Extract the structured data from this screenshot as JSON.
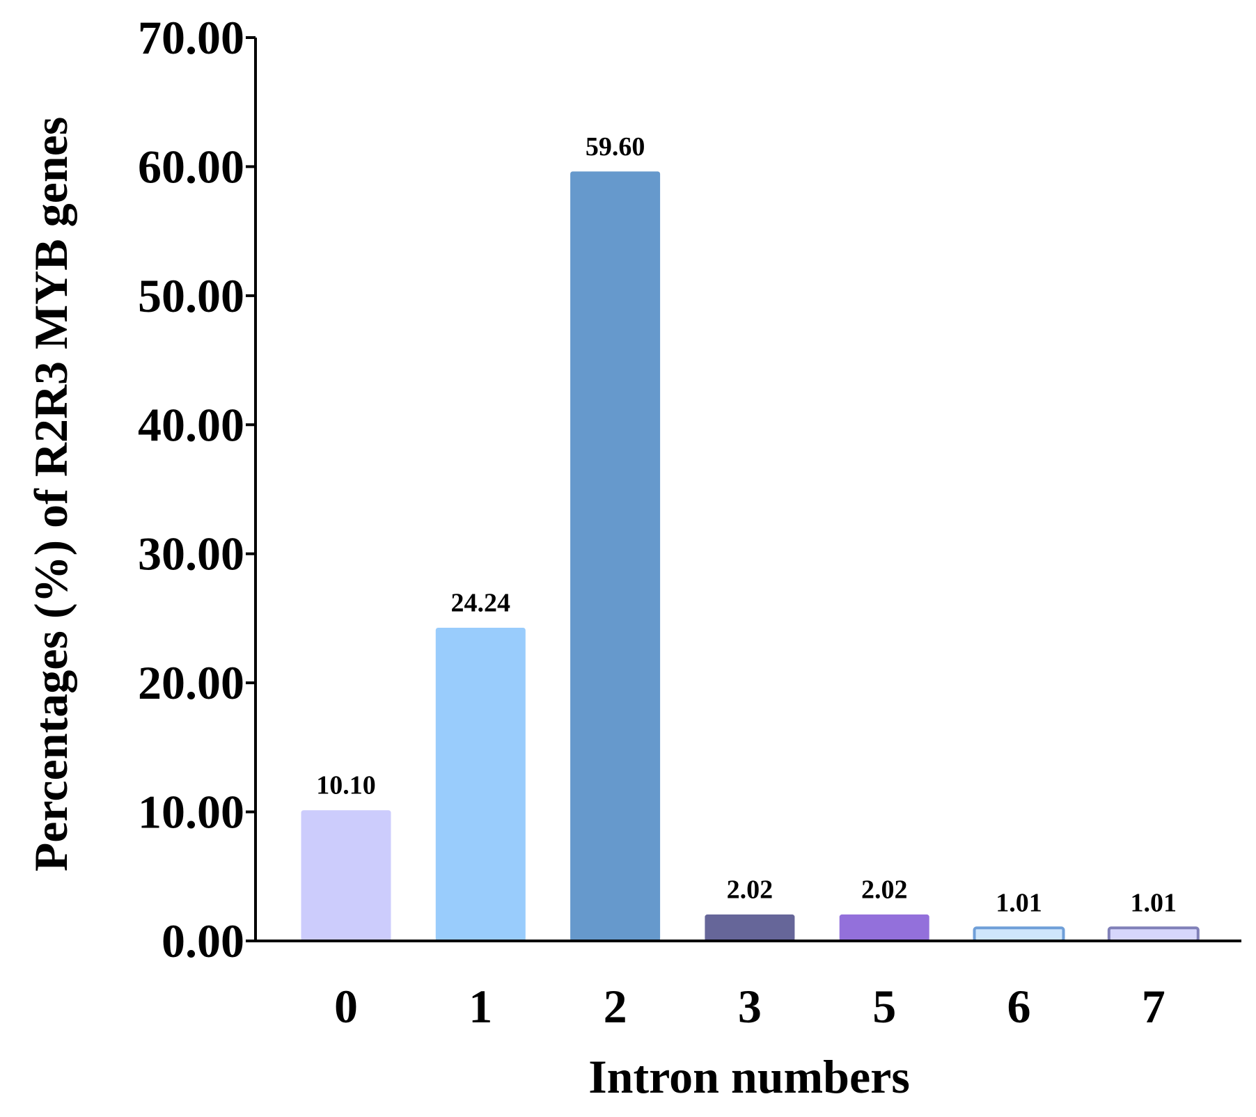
{
  "chart_data": {
    "type": "bar",
    "xlabel": "Intron numbers",
    "ylabel": "Percentages (%) of R2R3 MYB genes",
    "ylim": [
      0,
      70
    ],
    "yticks": [
      "0.00",
      "10.00",
      "20.00",
      "30.00",
      "40.00",
      "50.00",
      "60.00",
      "70.00"
    ],
    "grid": false,
    "categories": [
      "0",
      "1",
      "2",
      "3",
      "5",
      "6",
      "7"
    ],
    "values": [
      10.1,
      24.24,
      59.6,
      2.02,
      2.02,
      1.01,
      1.01
    ],
    "value_labels": [
      "10.10",
      "24.24",
      "59.60",
      "2.02",
      "2.02",
      "1.01",
      "1.01"
    ],
    "colors": [
      "#ccccfc",
      "#99ccfc",
      "#6699cc",
      "#666699",
      "#9370db",
      "#cfe6fc",
      "#d6d6fc"
    ],
    "outline_colors": [
      "#ccccfc",
      "#99ccfc",
      "#6699cc",
      "#666699",
      "#9370db",
      "#6f9fd8",
      "#8080b8"
    ]
  }
}
